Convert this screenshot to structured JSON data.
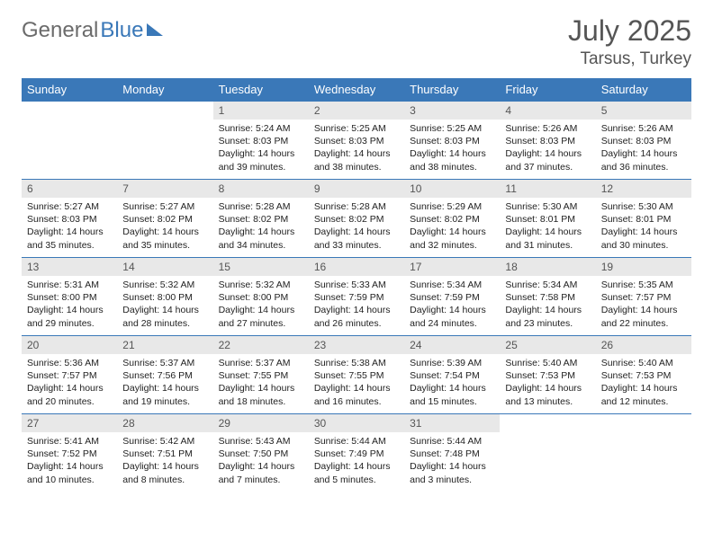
{
  "logo": {
    "text_gray": "General",
    "text_blue": "Blue"
  },
  "title": {
    "month": "July 2025",
    "location": "Tarsus, Turkey"
  },
  "headers": [
    "Sunday",
    "Monday",
    "Tuesday",
    "Wednesday",
    "Thursday",
    "Friday",
    "Saturday"
  ],
  "style": {
    "header_bg": "#3a78b8",
    "header_fg": "#ffffff",
    "daynum_bg": "#e8e8e8",
    "border_color": "#3a78b8",
    "body_font_size": 10.5,
    "header_font_size": 13,
    "title_font_size": 32,
    "location_font_size": 19
  },
  "weeks": [
    [
      null,
      null,
      {
        "n": "1",
        "sr": "5:24 AM",
        "ss": "8:03 PM",
        "dl": "14 hours and 39 minutes."
      },
      {
        "n": "2",
        "sr": "5:25 AM",
        "ss": "8:03 PM",
        "dl": "14 hours and 38 minutes."
      },
      {
        "n": "3",
        "sr": "5:25 AM",
        "ss": "8:03 PM",
        "dl": "14 hours and 38 minutes."
      },
      {
        "n": "4",
        "sr": "5:26 AM",
        "ss": "8:03 PM",
        "dl": "14 hours and 37 minutes."
      },
      {
        "n": "5",
        "sr": "5:26 AM",
        "ss": "8:03 PM",
        "dl": "14 hours and 36 minutes."
      }
    ],
    [
      {
        "n": "6",
        "sr": "5:27 AM",
        "ss": "8:03 PM",
        "dl": "14 hours and 35 minutes."
      },
      {
        "n": "7",
        "sr": "5:27 AM",
        "ss": "8:02 PM",
        "dl": "14 hours and 35 minutes."
      },
      {
        "n": "8",
        "sr": "5:28 AM",
        "ss": "8:02 PM",
        "dl": "14 hours and 34 minutes."
      },
      {
        "n": "9",
        "sr": "5:28 AM",
        "ss": "8:02 PM",
        "dl": "14 hours and 33 minutes."
      },
      {
        "n": "10",
        "sr": "5:29 AM",
        "ss": "8:02 PM",
        "dl": "14 hours and 32 minutes."
      },
      {
        "n": "11",
        "sr": "5:30 AM",
        "ss": "8:01 PM",
        "dl": "14 hours and 31 minutes."
      },
      {
        "n": "12",
        "sr": "5:30 AM",
        "ss": "8:01 PM",
        "dl": "14 hours and 30 minutes."
      }
    ],
    [
      {
        "n": "13",
        "sr": "5:31 AM",
        "ss": "8:00 PM",
        "dl": "14 hours and 29 minutes."
      },
      {
        "n": "14",
        "sr": "5:32 AM",
        "ss": "8:00 PM",
        "dl": "14 hours and 28 minutes."
      },
      {
        "n": "15",
        "sr": "5:32 AM",
        "ss": "8:00 PM",
        "dl": "14 hours and 27 minutes."
      },
      {
        "n": "16",
        "sr": "5:33 AM",
        "ss": "7:59 PM",
        "dl": "14 hours and 26 minutes."
      },
      {
        "n": "17",
        "sr": "5:34 AM",
        "ss": "7:59 PM",
        "dl": "14 hours and 24 minutes."
      },
      {
        "n": "18",
        "sr": "5:34 AM",
        "ss": "7:58 PM",
        "dl": "14 hours and 23 minutes."
      },
      {
        "n": "19",
        "sr": "5:35 AM",
        "ss": "7:57 PM",
        "dl": "14 hours and 22 minutes."
      }
    ],
    [
      {
        "n": "20",
        "sr": "5:36 AM",
        "ss": "7:57 PM",
        "dl": "14 hours and 20 minutes."
      },
      {
        "n": "21",
        "sr": "5:37 AM",
        "ss": "7:56 PM",
        "dl": "14 hours and 19 minutes."
      },
      {
        "n": "22",
        "sr": "5:37 AM",
        "ss": "7:55 PM",
        "dl": "14 hours and 18 minutes."
      },
      {
        "n": "23",
        "sr": "5:38 AM",
        "ss": "7:55 PM",
        "dl": "14 hours and 16 minutes."
      },
      {
        "n": "24",
        "sr": "5:39 AM",
        "ss": "7:54 PM",
        "dl": "14 hours and 15 minutes."
      },
      {
        "n": "25",
        "sr": "5:40 AM",
        "ss": "7:53 PM",
        "dl": "14 hours and 13 minutes."
      },
      {
        "n": "26",
        "sr": "5:40 AM",
        "ss": "7:53 PM",
        "dl": "14 hours and 12 minutes."
      }
    ],
    [
      {
        "n": "27",
        "sr": "5:41 AM",
        "ss": "7:52 PM",
        "dl": "14 hours and 10 minutes."
      },
      {
        "n": "28",
        "sr": "5:42 AM",
        "ss": "7:51 PM",
        "dl": "14 hours and 8 minutes."
      },
      {
        "n": "29",
        "sr": "5:43 AM",
        "ss": "7:50 PM",
        "dl": "14 hours and 7 minutes."
      },
      {
        "n": "30",
        "sr": "5:44 AM",
        "ss": "7:49 PM",
        "dl": "14 hours and 5 minutes."
      },
      {
        "n": "31",
        "sr": "5:44 AM",
        "ss": "7:48 PM",
        "dl": "14 hours and 3 minutes."
      },
      null,
      null
    ]
  ],
  "labels": {
    "sunrise": "Sunrise: ",
    "sunset": "Sunset: ",
    "daylight": "Daylight: "
  }
}
